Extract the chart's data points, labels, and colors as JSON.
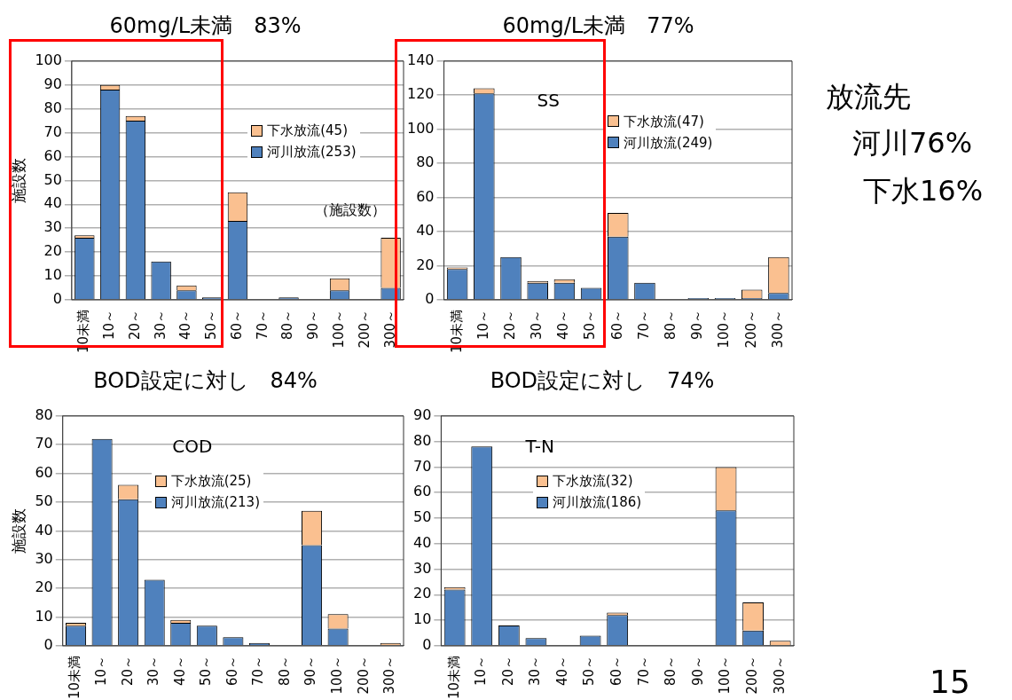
{
  "chart_data": [
    {
      "type": "bar",
      "title": "60mg/L未満　83%",
      "ylabel": "施設数",
      "stacked": true,
      "grid": "y",
      "legend": "right",
      "ylim": [
        0,
        100
      ],
      "yticks": [
        0,
        10,
        20,
        30,
        40,
        50,
        60,
        70,
        80,
        90,
        100
      ],
      "annotations": [
        "（施設数）"
      ],
      "categories": [
        "10未満",
        "10～",
        "20～",
        "30～",
        "40～",
        "50～",
        "60～",
        "70～",
        "80～",
        "90～",
        "100～",
        "200～",
        "300～"
      ],
      "series": [
        {
          "name": "河川放流(253)",
          "color": "#4f81bd",
          "values": [
            26,
            88,
            75,
            16,
            4,
            1,
            33,
            0,
            1,
            0,
            4,
            0,
            5
          ]
        },
        {
          "name": "下水放流(45)",
          "color": "#fac090",
          "values": [
            1,
            2,
            2,
            0,
            2,
            0,
            12,
            0,
            0,
            0,
            5,
            0,
            21
          ]
        }
      ]
    },
    {
      "type": "bar",
      "title": "60mg/L未満　77%",
      "stacked": true,
      "grid": "y",
      "legend": "top right",
      "ylim": [
        0,
        140
      ],
      "yticks": [
        0,
        20,
        40,
        60,
        80,
        100,
        120,
        140
      ],
      "annotations": [
        "SS"
      ],
      "categories": [
        "10未満",
        "10～",
        "20～",
        "30～",
        "40～",
        "50～",
        "60～",
        "70～",
        "80～",
        "90～",
        "100～",
        "200～",
        "300～"
      ],
      "series": [
        {
          "name": "河川放流(249)",
          "color": "#4f81bd",
          "values": [
            18,
            121,
            25,
            10,
            10,
            7,
            37,
            10,
            0,
            1,
            1,
            1,
            4
          ]
        },
        {
          "name": "下水放流(47)",
          "color": "#fac090",
          "values": [
            1,
            3,
            0,
            1,
            2,
            0,
            14,
            0,
            0,
            0,
            0,
            5,
            21
          ]
        }
      ]
    },
    {
      "type": "bar",
      "title": "BOD設定に対し　84%",
      "ylabel": "施設数",
      "stacked": true,
      "grid": "y",
      "legend": "top",
      "ylim": [
        0,
        80
      ],
      "yticks": [
        0,
        10,
        20,
        30,
        40,
        50,
        60,
        70,
        80
      ],
      "annotations": [
        "COD"
      ],
      "categories": [
        "10未満",
        "10～",
        "20～",
        "30～",
        "40～",
        "50～",
        "60～",
        "70～",
        "80～",
        "90～",
        "100～",
        "200～",
        "300～"
      ],
      "series": [
        {
          "name": "河川放流(213)",
          "color": "#4f81bd",
          "values": [
            7,
            72,
            51,
            23,
            8,
            7,
            3,
            1,
            0,
            35,
            6,
            0,
            0
          ]
        },
        {
          "name": "下水放流(25)",
          "color": "#fac090",
          "values": [
            1,
            0,
            5,
            0,
            1,
            0,
            0,
            0,
            0,
            12,
            5,
            0,
            1
          ]
        }
      ]
    },
    {
      "type": "bar",
      "title": "BOD設定に対し　74%",
      "stacked": true,
      "grid": "y",
      "legend": "top",
      "ylim": [
        0,
        90
      ],
      "yticks": [
        0,
        10,
        20,
        30,
        40,
        50,
        60,
        70,
        80,
        90
      ],
      "annotations": [
        "T-N"
      ],
      "categories": [
        "10未満",
        "10～",
        "20～",
        "30～",
        "40～",
        "50～",
        "60～",
        "70～",
        "80～",
        "90～",
        "100～",
        "200～",
        "300～"
      ],
      "series": [
        {
          "name": "河川放流(186)",
          "color": "#4f81bd",
          "values": [
            22,
            78,
            8,
            3,
            0,
            4,
            12,
            0,
            0,
            0,
            53,
            6,
            0
          ]
        },
        {
          "name": "下水放流(32)",
          "color": "#fac090",
          "values": [
            1,
            0,
            0,
            0,
            0,
            0,
            1,
            0,
            0,
            0,
            17,
            11,
            2
          ]
        }
      ]
    },
    {
      "type": "other",
      "annotations": [
        "放流先",
        "河川76%",
        "下水16%",
        "15"
      ]
    }
  ]
}
